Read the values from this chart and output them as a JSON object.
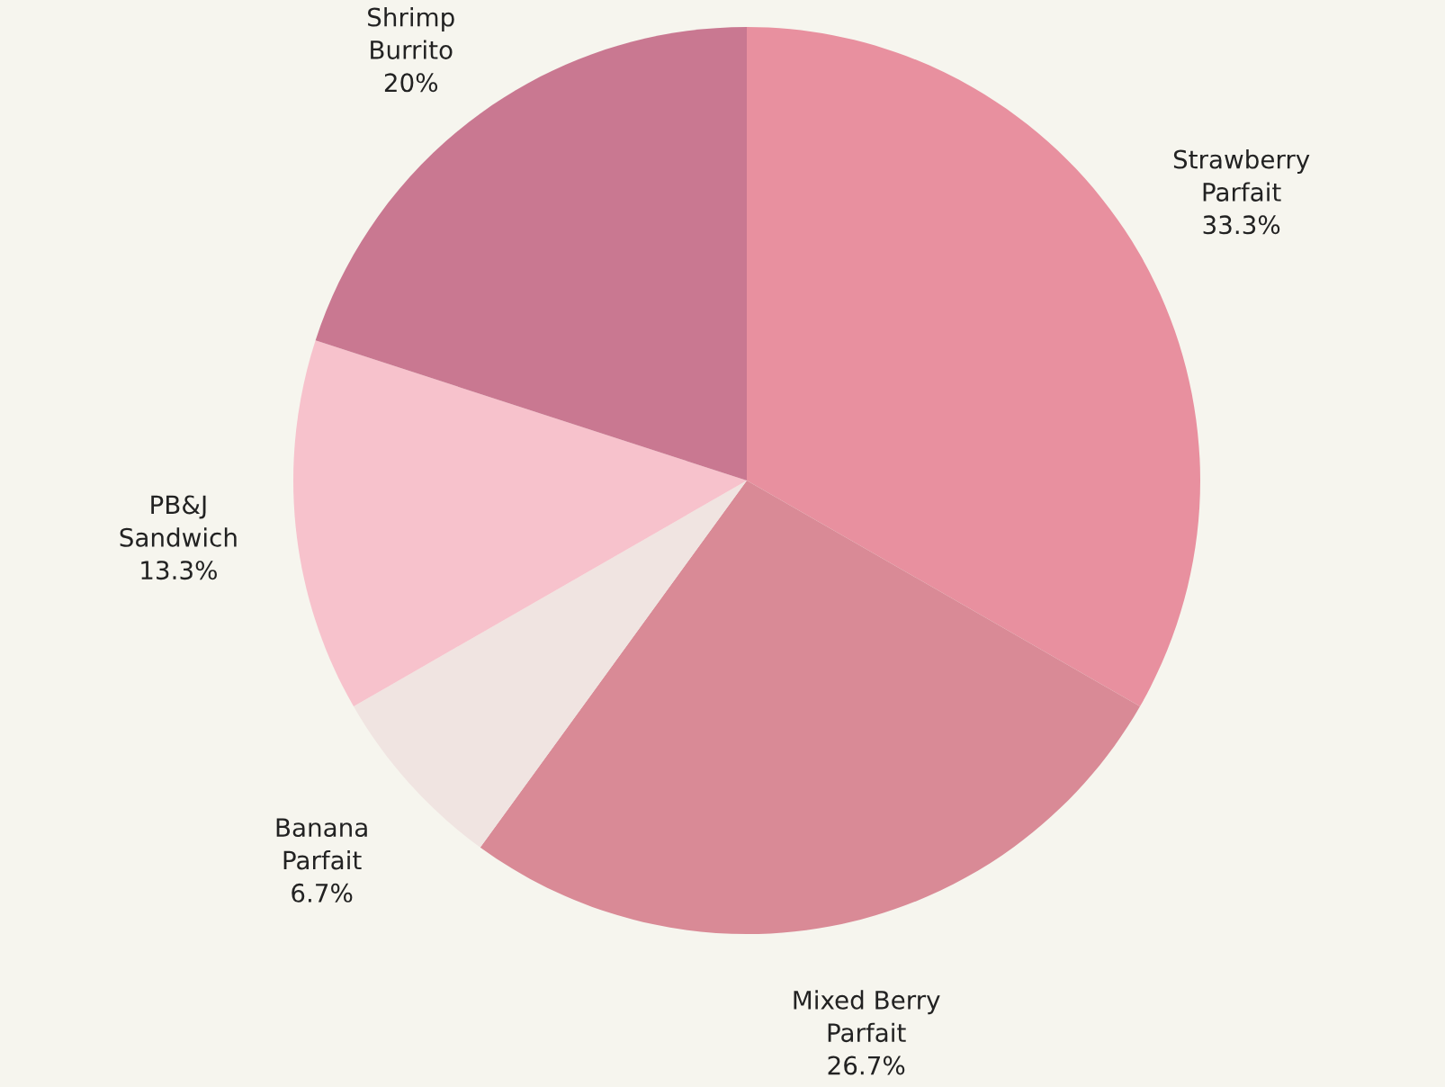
{
  "chart_data": {
    "type": "pie",
    "categories": [
      "Strawberry\nParfait",
      "Mixed Berry\nParfait",
      "Banana\nParfait",
      "PB&J\nSandwich",
      "Shrimp\nBurrito"
    ],
    "values": [
      33.3,
      26.7,
      6.7,
      13.3,
      20
    ],
    "value_labels": [
      "33.3%",
      "26.7%",
      "6.7%",
      "13.3%",
      "20%"
    ],
    "colors": [
      "#e8909f",
      "#d98a96",
      "#f0e4e1",
      "#f7c2cc",
      "#c97891"
    ]
  }
}
